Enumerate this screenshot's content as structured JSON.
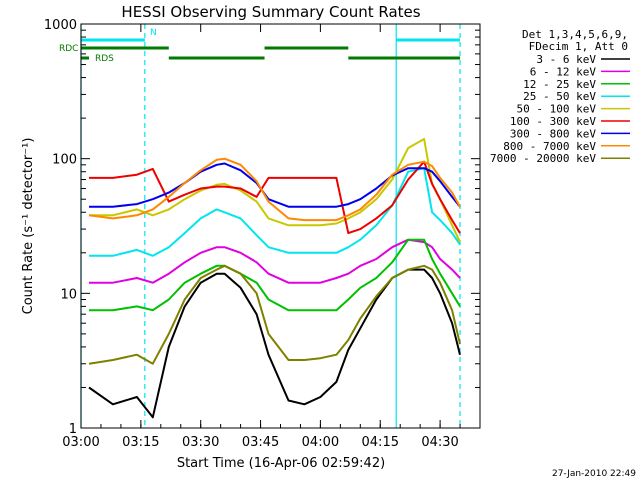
{
  "chart_data": {
    "type": "line",
    "title": "HESSI Observing Summary Count Rates",
    "xlabel": "Start Time (16-Apr-06 02:59:42)",
    "ylabel": "Count Rate (s⁻¹ detector⁻¹)",
    "y_scale": "log",
    "ylim": [
      1,
      1000
    ],
    "xlim": [
      "03:00",
      "04:40"
    ],
    "x_ticks": [
      "03:00",
      "03:15",
      "03:30",
      "03:45",
      "04:00",
      "04:15",
      "04:30"
    ],
    "y_ticks": [
      "1",
      "10",
      "100",
      "1000"
    ],
    "timestamp": "27-Jan-2010 22:49",
    "legend": {
      "placement": "right",
      "header": [
        "Det 1,3,4,5,6,9,",
        "FDecim 1, Att 0"
      ]
    },
    "flags": [
      {
        "label": "N",
        "color": "#00e5ee",
        "segments": [
          [
            "03:00",
            "03:16"
          ],
          [
            "04:19",
            "04:35"
          ]
        ]
      },
      {
        "label": "RDC",
        "color": "#007a00",
        "segments": [
          [
            "03:00",
            "03:22"
          ],
          [
            "03:46",
            "04:07"
          ]
        ]
      },
      {
        "label": "RDS",
        "color": "#007a00",
        "segments": [
          [
            "03:00",
            "03:02"
          ],
          [
            "03:22",
            "03:46"
          ],
          [
            "04:07",
            "04:35"
          ]
        ]
      }
    ],
    "vlines": [
      {
        "x": "03:00",
        "style": "solid",
        "color": "#00e5ee"
      },
      {
        "x": "03:16",
        "style": "dashed",
        "color": "#00e5ee"
      },
      {
        "x": "04:19",
        "style": "solid",
        "color": "#00e5ee"
      },
      {
        "x": "04:35",
        "style": "dashed",
        "color": "#00e5ee"
      }
    ],
    "x": [
      "03:02",
      "03:08",
      "03:14",
      "03:18",
      "03:22",
      "03:26",
      "03:30",
      "03:34",
      "03:36",
      "03:40",
      "03:44",
      "03:47",
      "03:52",
      "03:56",
      "04:00",
      "04:04",
      "04:07",
      "04:10",
      "04:14",
      "04:18",
      "04:22",
      "04:26",
      "04:28",
      "04:30",
      "04:33",
      "04:35"
    ],
    "series": [
      {
        "name": "3 - 6 keV",
        "color": "#000000",
        "values": [
          2,
          1.5,
          1.7,
          1.2,
          4,
          8,
          12,
          14,
          14,
          11,
          7,
          3.5,
          1.6,
          1.5,
          1.7,
          2.2,
          3.8,
          5.5,
          9,
          13,
          15,
          15,
          13,
          10,
          6,
          3.5
        ]
      },
      {
        "name": "6 - 12 keV",
        "color": "#e000e0",
        "values": [
          12,
          12,
          13,
          12,
          14,
          17,
          20,
          22,
          22,
          20,
          17,
          14,
          12,
          12,
          12,
          13,
          14,
          16,
          18,
          22,
          25,
          24,
          22,
          18,
          15,
          13
        ]
      },
      {
        "name": "12 - 25 keV",
        "color": "#00c000",
        "values": [
          7.5,
          7.5,
          8,
          7.5,
          9,
          12,
          14,
          16,
          16,
          14,
          12,
          9,
          7.5,
          7.5,
          7.5,
          7.5,
          9,
          11,
          13,
          17,
          25,
          25,
          18,
          14,
          10,
          8
        ]
      },
      {
        "name": "25 - 50 keV",
        "color": "#00e5ee",
        "values": [
          19,
          19,
          21,
          19,
          22,
          28,
          36,
          42,
          40,
          36,
          27,
          22,
          20,
          20,
          20,
          20,
          22,
          25,
          32,
          45,
          80,
          85,
          40,
          35,
          28,
          23
        ]
      },
      {
        "name": "50 - 100 keV",
        "color": "#c8c800",
        "values": [
          38,
          38,
          42,
          38,
          42,
          50,
          58,
          64,
          65,
          58,
          48,
          36,
          32,
          32,
          32,
          33,
          36,
          40,
          50,
          70,
          120,
          140,
          65,
          50,
          32,
          24
        ]
      },
      {
        "name": "100 - 300 keV",
        "color": "#ee0000",
        "values": [
          72,
          72,
          76,
          84,
          48,
          54,
          60,
          62,
          62,
          60,
          52,
          72,
          72,
          72,
          72,
          72,
          28,
          30,
          36,
          45,
          70,
          95,
          65,
          50,
          35,
          28
        ]
      },
      {
        "name": "300 - 800 keV",
        "color": "#0000ee",
        "values": [
          44,
          44,
          46,
          50,
          56,
          66,
          80,
          90,
          92,
          82,
          66,
          50,
          44,
          44,
          44,
          44,
          46,
          50,
          60,
          75,
          85,
          85,
          80,
          68,
          52,
          44
        ]
      },
      {
        "name": "800 - 7000 keV",
        "color": "#ff8800",
        "values": [
          38,
          36,
          38,
          42,
          52,
          66,
          82,
          98,
          100,
          90,
          68,
          48,
          36,
          35,
          35,
          35,
          38,
          42,
          54,
          76,
          90,
          95,
          88,
          72,
          56,
          44
        ]
      },
      {
        "name": "7000 - 20000 keV",
        "color": "#808000",
        "values": [
          3,
          3.2,
          3.5,
          3,
          5,
          9,
          13,
          15,
          16,
          14,
          10,
          5,
          3.2,
          3.2,
          3.3,
          3.5,
          4.5,
          6.5,
          9.5,
          13,
          15,
          16,
          15,
          12,
          7.5,
          4.2
        ]
      }
    ]
  }
}
